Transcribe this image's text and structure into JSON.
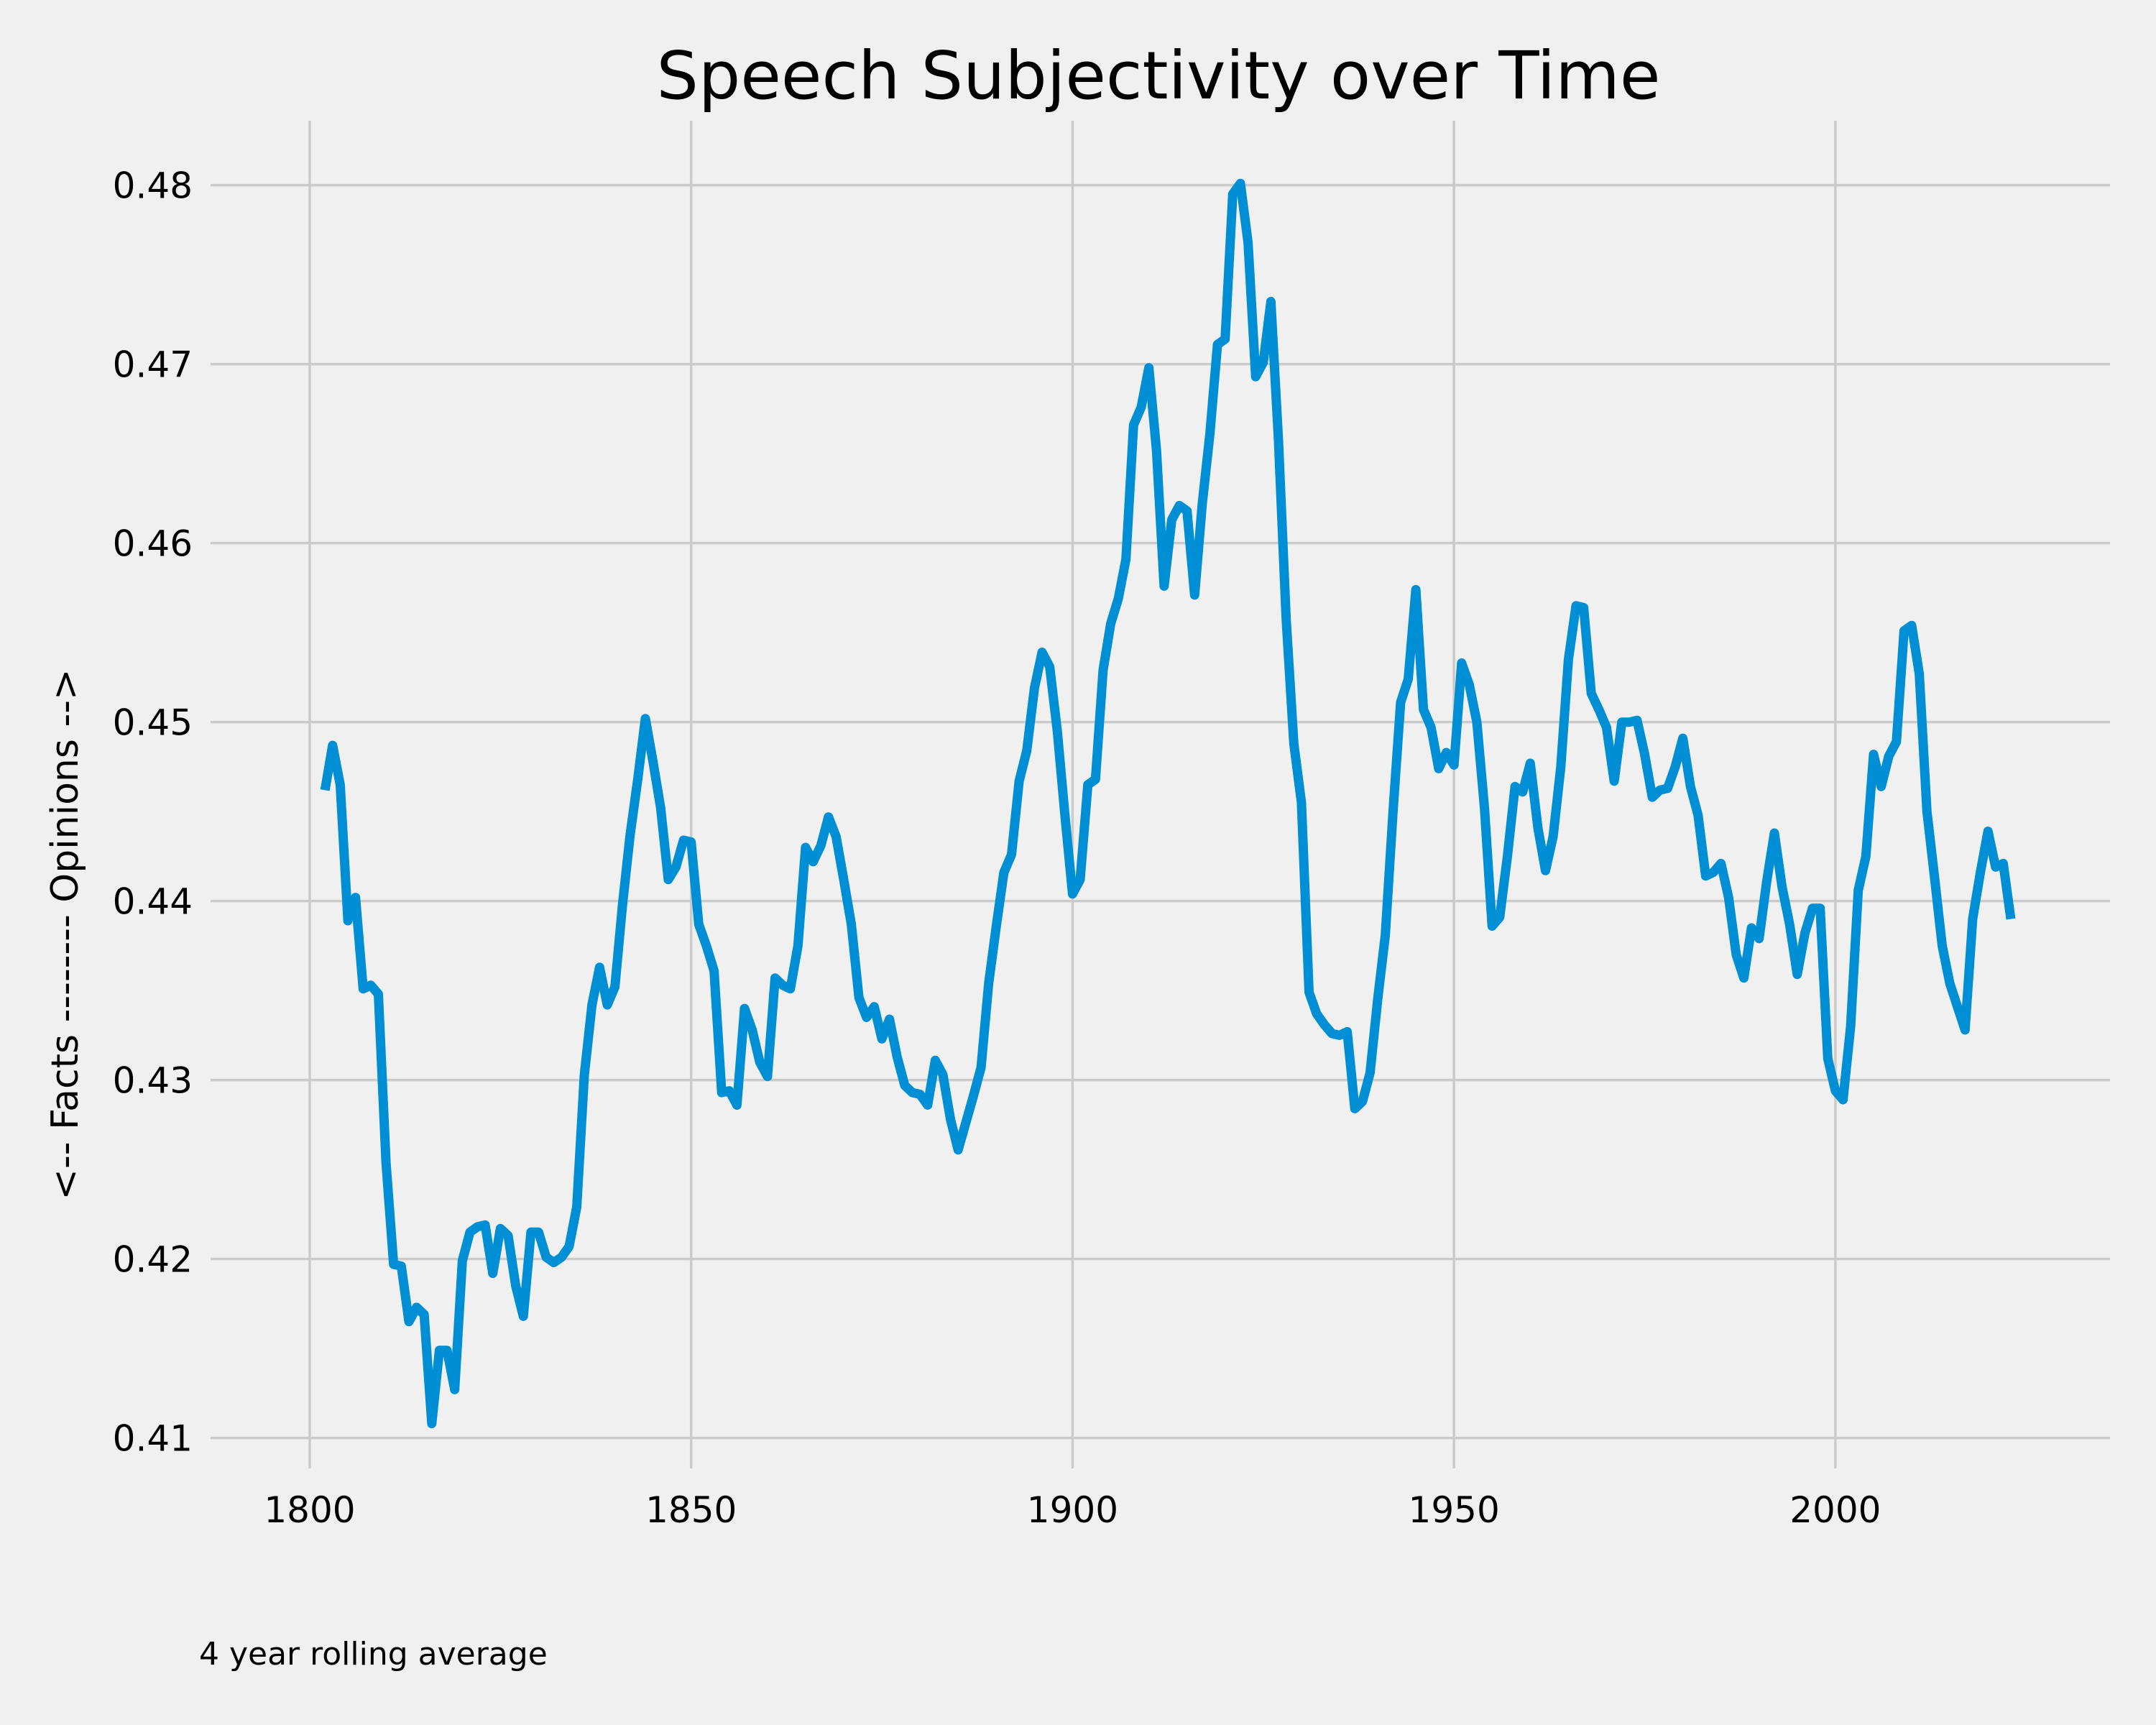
{
  "chart_data": {
    "type": "line",
    "title": "Speech Subjectivity over Time",
    "xlabel": "",
    "ylabel": "<-- Facts -------- Opinions -->",
    "xlim": [
      1787,
      2036
    ],
    "ylim": [
      0.4083,
      0.4836
    ],
    "xticks": [
      1800,
      1850,
      1900,
      1950,
      2000
    ],
    "xtick_labels": [
      "1800",
      "1850",
      "1900",
      "1950",
      "2000"
    ],
    "yticks": [
      0.41,
      0.42,
      0.43,
      0.44,
      0.45,
      0.46,
      0.47,
      0.48
    ],
    "ytick_labels": [
      "0.41",
      "0.42",
      "0.43",
      "0.44",
      "0.45",
      "0.46",
      "0.47",
      "0.48"
    ],
    "grid": true,
    "line_color": "#008fd5",
    "annotations": [
      "4 year rolling average"
    ],
    "x": [
      1802,
      1803,
      1804,
      1805,
      1806,
      1807,
      1808,
      1809,
      1810,
      1811,
      1812,
      1813,
      1814,
      1815,
      1816,
      1817,
      1818,
      1819,
      1820,
      1821,
      1822,
      1823,
      1824,
      1825,
      1826,
      1827,
      1828,
      1829,
      1830,
      1831,
      1832,
      1833,
      1834,
      1835,
      1836,
      1837,
      1838,
      1839,
      1840,
      1841,
      1842,
      1843,
      1844,
      1845,
      1846,
      1847,
      1848,
      1849,
      1850,
      1851,
      1852,
      1853,
      1854,
      1855,
      1856,
      1857,
      1858,
      1859,
      1860,
      1861,
      1862,
      1863,
      1864,
      1865,
      1866,
      1867,
      1868,
      1869,
      1870,
      1871,
      1872,
      1873,
      1874,
      1875,
      1876,
      1877,
      1878,
      1879,
      1880,
      1881,
      1882,
      1883,
      1884,
      1885,
      1886,
      1887,
      1888,
      1889,
      1890,
      1891,
      1892,
      1893,
      1894,
      1895,
      1896,
      1897,
      1898,
      1899,
      1900,
      1901,
      1902,
      1903,
      1904,
      1905,
      1906,
      1907,
      1908,
      1909,
      1910,
      1911,
      1912,
      1913,
      1914,
      1915,
      1916,
      1917,
      1918,
      1919,
      1920,
      1921,
      1922,
      1923,
      1924,
      1925,
      1926,
      1927,
      1928,
      1929,
      1930,
      1931,
      1932,
      1933,
      1934,
      1935,
      1936,
      1937,
      1938,
      1939,
      1940,
      1941,
      1942,
      1943,
      1944,
      1945,
      1946,
      1947,
      1948,
      1949,
      1950,
      1951,
      1952,
      1953,
      1954,
      1955,
      1956,
      1957,
      1958,
      1959,
      1960,
      1961,
      1962,
      1963,
      1964,
      1965,
      1966,
      1967,
      1968,
      1969,
      1970,
      1971,
      1972,
      1973,
      1974,
      1975,
      1976,
      1977,
      1978,
      1979,
      1980,
      1981,
      1982,
      1983,
      1984,
      1985,
      1986,
      1987,
      1988,
      1989,
      1990,
      1991,
      1992,
      1993,
      1994,
      1995,
      1996,
      1997,
      1998,
      1999,
      2000,
      2001,
      2002,
      2003,
      2004,
      2005,
      2006,
      2007,
      2008,
      2009,
      2010,
      2011,
      2012,
      2013,
      2014,
      2015,
      2016,
      2017,
      2018,
      2019,
      2020,
      2021,
      2022,
      2023
    ],
    "series": [
      {
        "name": "",
        "values": [
          0.4462,
          0.4487,
          0.4465,
          0.4389,
          0.4402,
          0.4351,
          0.4353,
          0.4348,
          0.4254,
          0.4197,
          0.4196,
          0.4165,
          0.4173,
          0.4169,
          0.4108,
          0.4149,
          0.4149,
          0.4127,
          0.4199,
          0.4215,
          0.4218,
          0.4219,
          0.4192,
          0.4217,
          0.4213,
          0.4185,
          0.4168,
          0.4215,
          0.4215,
          0.4201,
          0.4198,
          0.4201,
          0.4207,
          0.4229,
          0.4303,
          0.4342,
          0.4363,
          0.4342,
          0.4352,
          0.4398,
          0.4437,
          0.4468,
          0.4502,
          0.4478,
          0.4452,
          0.4412,
          0.4419,
          0.4434,
          0.4433,
          0.4387,
          0.4375,
          0.4361,
          0.4293,
          0.4294,
          0.4286,
          0.434,
          0.4328,
          0.431,
          0.4302,
          0.4357,
          0.4353,
          0.4351,
          0.4375,
          0.443,
          0.4422,
          0.4431,
          0.4447,
          0.4436,
          0.4412,
          0.4387,
          0.4346,
          0.4335,
          0.4341,
          0.4323,
          0.4334,
          0.4313,
          0.4297,
          0.4293,
          0.4292,
          0.4286,
          0.4311,
          0.4303,
          0.4278,
          0.4261,
          0.4276,
          0.4291,
          0.4307,
          0.4354,
          0.4386,
          0.4416,
          0.4426,
          0.4467,
          0.4484,
          0.4519,
          0.4539,
          0.4531,
          0.4495,
          0.4448,
          0.4404,
          0.4412,
          0.4465,
          0.4468,
          0.4529,
          0.4555,
          0.4569,
          0.4591,
          0.4666,
          0.4676,
          0.4698,
          0.4652,
          0.4576,
          0.4613,
          0.4621,
          0.4618,
          0.4571,
          0.4622,
          0.4661,
          0.4711,
          0.4714,
          0.4795,
          0.4801,
          0.4768,
          0.4693,
          0.4701,
          0.4735,
          0.4657,
          0.4558,
          0.4488,
          0.4455,
          0.4349,
          0.4337,
          0.4331,
          0.4326,
          0.4325,
          0.4327,
          0.4284,
          0.4288,
          0.4304,
          0.4345,
          0.4381,
          0.4449,
          0.4511,
          0.4524,
          0.4574,
          0.4507,
          0.4497,
          0.4474,
          0.4483,
          0.4476,
          0.4533,
          0.4521,
          0.45,
          0.4452,
          0.4386,
          0.4391,
          0.4425,
          0.4464,
          0.4461,
          0.4477,
          0.4441,
          0.4417,
          0.4436,
          0.4475,
          0.4535,
          0.4565,
          0.4564,
          0.4516,
          0.4507,
          0.4497,
          0.4467,
          0.45,
          0.45,
          0.4501,
          0.4482,
          0.4458,
          0.4462,
          0.4463,
          0.4475,
          0.4491,
          0.4464,
          0.4448,
          0.4414,
          0.4416,
          0.4421,
          0.4402,
          0.437,
          0.4357,
          0.4385,
          0.4379,
          0.4411,
          0.4438,
          0.4408,
          0.4387,
          0.4359,
          0.4382,
          0.4396,
          0.4396,
          0.4312,
          0.4294,
          0.4289,
          0.433,
          0.4406,
          0.4425,
          0.4482,
          0.4464,
          0.4481,
          0.4489,
          0.4551,
          0.4554,
          0.4527,
          0.445,
          0.4413,
          0.4375,
          0.4354,
          0.4341,
          0.4328,
          0.439,
          0.4416,
          0.4439,
          0.4419,
          0.4421,
          0.439
        ]
      }
    ]
  }
}
